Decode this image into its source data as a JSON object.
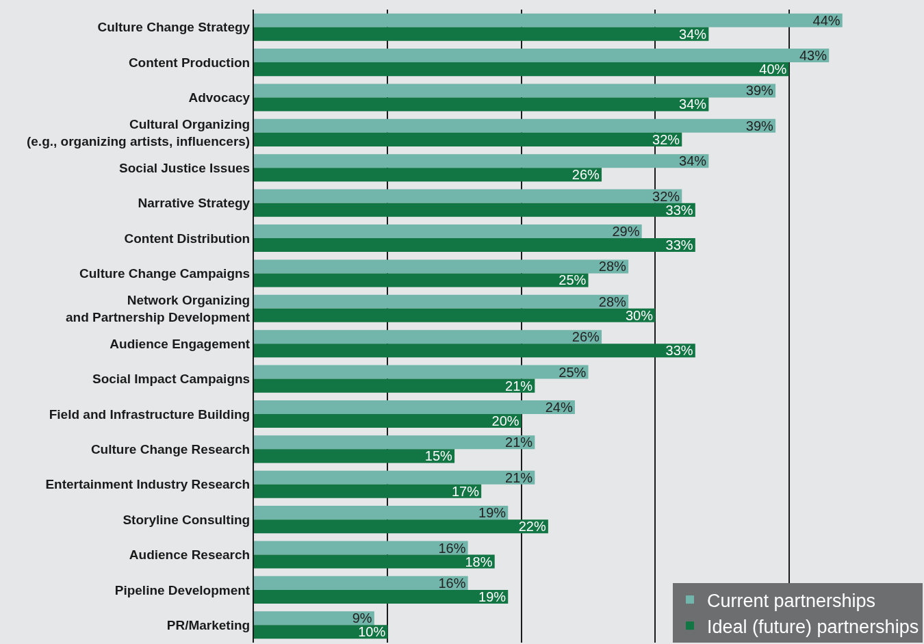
{
  "chart_data": {
    "type": "bar",
    "orientation": "horizontal",
    "categories": [
      "Culture Change Strategy",
      "Content Production",
      "Advocacy",
      "Cultural Organizing\n(e.g., organizing artists, influencers)",
      "Social Justice Issues",
      "Narrative Strategy",
      "Content Distribution",
      "Culture Change Campaigns",
      "Network Organizing\nand Partnership Development",
      "Audience Engagement",
      "Social Impact Campaigns",
      "Field and Infrastructure Building",
      "Culture Change Research",
      "Entertainment Industry Research",
      "Storyline Consulting",
      "Audience Research",
      "Pipeline Development",
      "PR/Marketing"
    ],
    "series": [
      {
        "name": "Current partnerships",
        "color": "#72b5aa",
        "values": [
          44,
          43,
          39,
          39,
          34,
          32,
          29,
          28,
          28,
          26,
          25,
          24,
          21,
          21,
          19,
          16,
          16,
          9
        ],
        "value_labels": [
          "44%",
          "43%",
          "39%",
          "39%",
          "34%",
          "32%",
          "29%",
          "28%",
          "28%",
          "26%",
          "25%",
          "24%",
          "21%",
          "21%",
          "19%",
          "16%",
          "16%",
          "9%"
        ]
      },
      {
        "name": "Ideal (future) partnerships",
        "color": "#127544",
        "values": [
          34,
          40,
          34,
          32,
          26,
          33,
          33,
          25,
          30,
          33,
          21,
          20,
          15,
          17,
          22,
          18,
          19,
          10
        ],
        "value_labels": [
          "34%",
          "40%",
          "34%",
          "32%",
          "26%",
          "33%",
          "33%",
          "25%",
          "30%",
          "33%",
          "21%",
          "20%",
          "15%",
          "17%",
          "22%",
          "18%",
          "19%",
          "10%"
        ]
      }
    ],
    "xlim": [
      0,
      50
    ],
    "xticks": [
      {
        "value": 0,
        "label": null
      },
      {
        "value": 10,
        "label": null
      },
      {
        "value": 20,
        "label": null
      },
      {
        "value": 30,
        "label": null
      },
      {
        "value": 40,
        "label": null
      },
      {
        "value": 50,
        "label": null
      }
    ],
    "grid": "x",
    "legend": "bottom right",
    "tick_labels": "y"
  }
}
